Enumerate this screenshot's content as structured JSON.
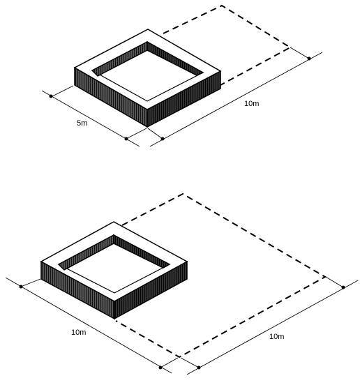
{
  "top_figure": {
    "width_label": "5m",
    "depth_label": "10m"
  },
  "bottom_figure": {
    "width_label": "10m",
    "depth_label": "10m"
  }
}
